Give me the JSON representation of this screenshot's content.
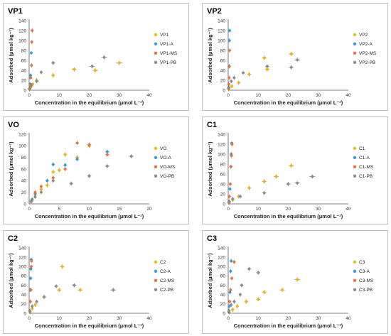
{
  "colors": {
    "Raw": "#f2b705",
    "A": "#2e9fd8",
    "MS": "#e8733a",
    "PB": "#8c8c8c"
  },
  "chart_data": [
    {
      "title": "VP1",
      "type": "scatter",
      "xlabel": "Concentration in the equilibrium (μmol L⁻¹)",
      "ylabel": "Adsorbed (μmol kg⁻¹)",
      "xlim": [
        0,
        40
      ],
      "ylim": [
        0,
        140
      ],
      "xticks": [
        0,
        10,
        20,
        30,
        40
      ],
      "yticks": [
        0,
        20,
        40,
        60,
        80,
        100,
        120,
        140
      ],
      "legend_position": "right",
      "series": [
        {
          "name": "VP1",
          "color_key": "Raw",
          "points": [
            [
              0.2,
              2
            ],
            [
              0.6,
              6
            ],
            [
              1.2,
              12
            ],
            [
              2.5,
              20
            ],
            [
              8,
              30
            ],
            [
              15,
              42
            ],
            [
              22,
              40
            ],
            [
              30,
              55
            ]
          ]
        },
        {
          "name": "VP1-A",
          "color_key": "A",
          "points": [
            [
              0.1,
              3
            ],
            [
              0.3,
              12
            ],
            [
              0.5,
              30
            ],
            [
              0.7,
              75
            ]
          ]
        },
        {
          "name": "VP1-MS",
          "color_key": "MS",
          "points": [
            [
              0.1,
              2
            ],
            [
              0.3,
              10
            ],
            [
              0.5,
              25
            ],
            [
              0.8,
              50
            ],
            [
              0.9,
              97
            ],
            [
              1.0,
              120
            ]
          ]
        },
        {
          "name": "VP1-PB",
          "color_key": "PB",
          "points": [
            [
              0.2,
              4
            ],
            [
              0.8,
              10
            ],
            [
              2.5,
              18
            ],
            [
              4,
              36
            ],
            [
              8,
              55
            ],
            [
              21,
              48
            ],
            [
              25,
              66
            ]
          ]
        }
      ]
    },
    {
      "title": "VP2",
      "type": "scatter",
      "xlabel": "Concentration in the equilibrium (μmol L⁻¹)",
      "ylabel": "Adsorbed (μmol kg⁻¹)",
      "xlim": [
        0,
        40
      ],
      "ylim": [
        0,
        140
      ],
      "xticks": [
        0,
        10,
        20,
        30,
        40
      ],
      "yticks": [
        0,
        20,
        40,
        60,
        80,
        100,
        120,
        140
      ],
      "legend_position": "right",
      "series": [
        {
          "name": "VP2",
          "color_key": "Raw",
          "points": [
            [
              0.2,
              2
            ],
            [
              1.2,
              8
            ],
            [
              3.5,
              15
            ],
            [
              7,
              32
            ],
            [
              12,
              65
            ],
            [
              13,
              42
            ],
            [
              21,
              73
            ]
          ]
        },
        {
          "name": "VP2-A",
          "color_key": "A",
          "points": [
            [
              0.1,
              5
            ],
            [
              0.3,
              48
            ],
            [
              0.4,
              100
            ],
            [
              0.5,
              120
            ]
          ]
        },
        {
          "name": "VP2-MS",
          "color_key": "MS",
          "points": [
            [
              0.1,
              3
            ],
            [
              0.2,
              12
            ],
            [
              0.3,
              25
            ],
            [
              0.4,
              48
            ],
            [
              0.5,
              80
            ]
          ]
        },
        {
          "name": "VP2-PB",
          "color_key": "PB",
          "points": [
            [
              0.3,
              5
            ],
            [
              1,
              18
            ],
            [
              2,
              25
            ],
            [
              5,
              35
            ],
            [
              13,
              48
            ],
            [
              21,
              46
            ],
            [
              23,
              61
            ]
          ]
        }
      ]
    },
    {
      "title": "VO",
      "type": "scatter",
      "xlabel": "Concentration in the equilibrium (μmol L⁻¹)",
      "ylabel": "Adsorbed (μmol kg⁻¹)",
      "xlim": [
        0,
        20
      ],
      "ylim": [
        0,
        120
      ],
      "xticks": [
        0,
        5,
        10,
        15,
        20
      ],
      "yticks": [
        0,
        20,
        40,
        60,
        80,
        100,
        120
      ],
      "legend_position": "right",
      "series": [
        {
          "name": "VO",
          "color_key": "Raw",
          "points": [
            [
              0.5,
              6
            ],
            [
              1,
              15
            ],
            [
              2,
              25
            ],
            [
              3,
              32
            ],
            [
              4,
              55
            ],
            [
              5,
              58
            ],
            [
              6,
              85
            ],
            [
              8,
              80
            ],
            [
              10,
              100
            ]
          ]
        },
        {
          "name": "VO-A",
          "color_key": "A",
          "points": [
            [
              0.5,
              8
            ],
            [
              1,
              18
            ],
            [
              3,
              40
            ],
            [
              4,
              68
            ],
            [
              6,
              67
            ],
            [
              8,
              77
            ],
            [
              13,
              90
            ]
          ]
        },
        {
          "name": "VO-MS",
          "color_key": "MS",
          "points": [
            [
              0.4,
              5
            ],
            [
              1,
              20
            ],
            [
              2,
              30
            ],
            [
              4,
              45
            ],
            [
              6,
              60
            ],
            [
              8,
              105
            ],
            [
              10,
              102
            ],
            [
              13,
              85
            ]
          ]
        },
        {
          "name": "VO-PB",
          "color_key": "PB",
          "points": [
            [
              0.3,
              4
            ],
            [
              1,
              12
            ],
            [
              2,
              20
            ],
            [
              4,
              40
            ],
            [
              7,
              35
            ],
            [
              10,
              48
            ],
            [
              13,
              65
            ],
            [
              17,
              82
            ]
          ]
        }
      ]
    },
    {
      "title": "C1",
      "type": "scatter",
      "xlabel": "Concentration in the equilibrium (μmol L⁻¹)",
      "ylabel": "Adsorbed (μmol kg⁻¹)",
      "xlim": [
        0,
        40
      ],
      "ylim": [
        0,
        140
      ],
      "xticks": [
        0,
        10,
        20,
        30,
        40
      ],
      "yticks": [
        0,
        20,
        40,
        60,
        80,
        100,
        120,
        140
      ],
      "legend_position": "right",
      "series": [
        {
          "name": "C1",
          "color_key": "Raw",
          "points": [
            [
              0.3,
              3
            ],
            [
              1.5,
              8
            ],
            [
              3.5,
              15
            ],
            [
              7,
              32
            ],
            [
              12,
              45
            ],
            [
              16,
              55
            ],
            [
              21,
              77
            ]
          ]
        },
        {
          "name": "C1-A",
          "color_key": "A",
          "points": [
            [
              0.3,
              5
            ],
            [
              0.6,
              30
            ],
            [
              0.9,
              75
            ],
            [
              1.0,
              100
            ],
            [
              1.2,
              122
            ]
          ]
        },
        {
          "name": "C1-MS",
          "color_key": "MS",
          "points": [
            [
              0.2,
              3
            ],
            [
              0.4,
              15
            ],
            [
              0.7,
              40
            ],
            [
              0.9,
              75
            ],
            [
              1.1,
              97
            ],
            [
              1.3,
              120
            ]
          ]
        },
        {
          "name": "C1-PB",
          "color_key": "PB",
          "points": [
            [
              0.4,
              4
            ],
            [
              1.5,
              10
            ],
            [
              4,
              15
            ],
            [
              12,
              22
            ],
            [
              20,
              40
            ],
            [
              23,
              42
            ],
            [
              28,
              55
            ]
          ]
        }
      ]
    },
    {
      "title": "C2",
      "type": "scatter",
      "xlabel": "Concentration in the equilibrium (μmol L⁻¹)",
      "ylabel": "Adsorbed (μmol kg⁻¹)",
      "xlim": [
        0,
        40
      ],
      "ylim": [
        0,
        140
      ],
      "xticks": [
        0,
        10,
        20,
        30,
        40
      ],
      "yticks": [
        0,
        20,
        40,
        60,
        80,
        100,
        120,
        140
      ],
      "legend_position": "right",
      "series": [
        {
          "name": "C2",
          "color_key": "Raw",
          "points": [
            [
              0.3,
              3
            ],
            [
              1,
              10
            ],
            [
              2,
              18
            ],
            [
              5,
              35
            ],
            [
              10,
              50
            ],
            [
              11,
              100
            ],
            [
              17,
              50
            ]
          ]
        },
        {
          "name": "C2-A",
          "color_key": "A",
          "points": [
            [
              0.2,
              5
            ],
            [
              0.4,
              50
            ],
            [
              0.5,
              75
            ],
            [
              0.6,
              95
            ],
            [
              0.7,
              115
            ]
          ]
        },
        {
          "name": "C2-MS",
          "color_key": "MS",
          "points": [
            [
              0.2,
              5
            ],
            [
              0.4,
              25
            ],
            [
              0.6,
              50
            ],
            [
              0.7,
              100
            ],
            [
              0.8,
              112
            ]
          ]
        },
        {
          "name": "C2-PB",
          "color_key": "PB",
          "points": [
            [
              0.3,
              4
            ],
            [
              1,
              15
            ],
            [
              2.5,
              25
            ],
            [
              5,
              35
            ],
            [
              9,
              58
            ],
            [
              15,
              60
            ],
            [
              28,
              50
            ]
          ]
        }
      ]
    },
    {
      "title": "C3",
      "type": "scatter",
      "xlabel": "Concentration in the equilibrium (μmol L⁻¹)",
      "ylabel": "Adsorbed (μmol kg⁻¹)",
      "xlim": [
        0,
        40
      ],
      "ylim": [
        0,
        140
      ],
      "xticks": [
        0,
        10,
        20,
        30,
        40
      ],
      "yticks": [
        0,
        20,
        40,
        60,
        80,
        100,
        120,
        140
      ],
      "legend_position": "right",
      "series": [
        {
          "name": "C3",
          "color_key": "Raw",
          "points": [
            [
              0.3,
              2
            ],
            [
              1.5,
              8
            ],
            [
              3,
              15
            ],
            [
              6,
              25
            ],
            [
              10,
              30
            ],
            [
              12,
              45
            ],
            [
              18,
              50
            ],
            [
              23,
              72
            ]
          ]
        },
        {
          "name": "C3-A",
          "color_key": "A",
          "points": [
            [
              0.2,
              3
            ],
            [
              0.4,
              15
            ],
            [
              0.6,
              45
            ],
            [
              0.8,
              90
            ],
            [
              1.0,
              112
            ]
          ]
        },
        {
          "name": "C3-MS",
          "color_key": "MS",
          "points": [
            [
              0.2,
              5
            ],
            [
              0.5,
              25
            ],
            [
              0.8,
              50
            ],
            [
              1.2,
              75
            ],
            [
              2,
              110
            ]
          ]
        },
        {
          "name": "C3-PB",
          "color_key": "PB",
          "points": [
            [
              0.3,
              5
            ],
            [
              1,
              18
            ],
            [
              2,
              25
            ],
            [
              4,
              40
            ],
            [
              4.5,
              60
            ],
            [
              7,
              95
            ],
            [
              10,
              87
            ]
          ]
        }
      ]
    }
  ]
}
